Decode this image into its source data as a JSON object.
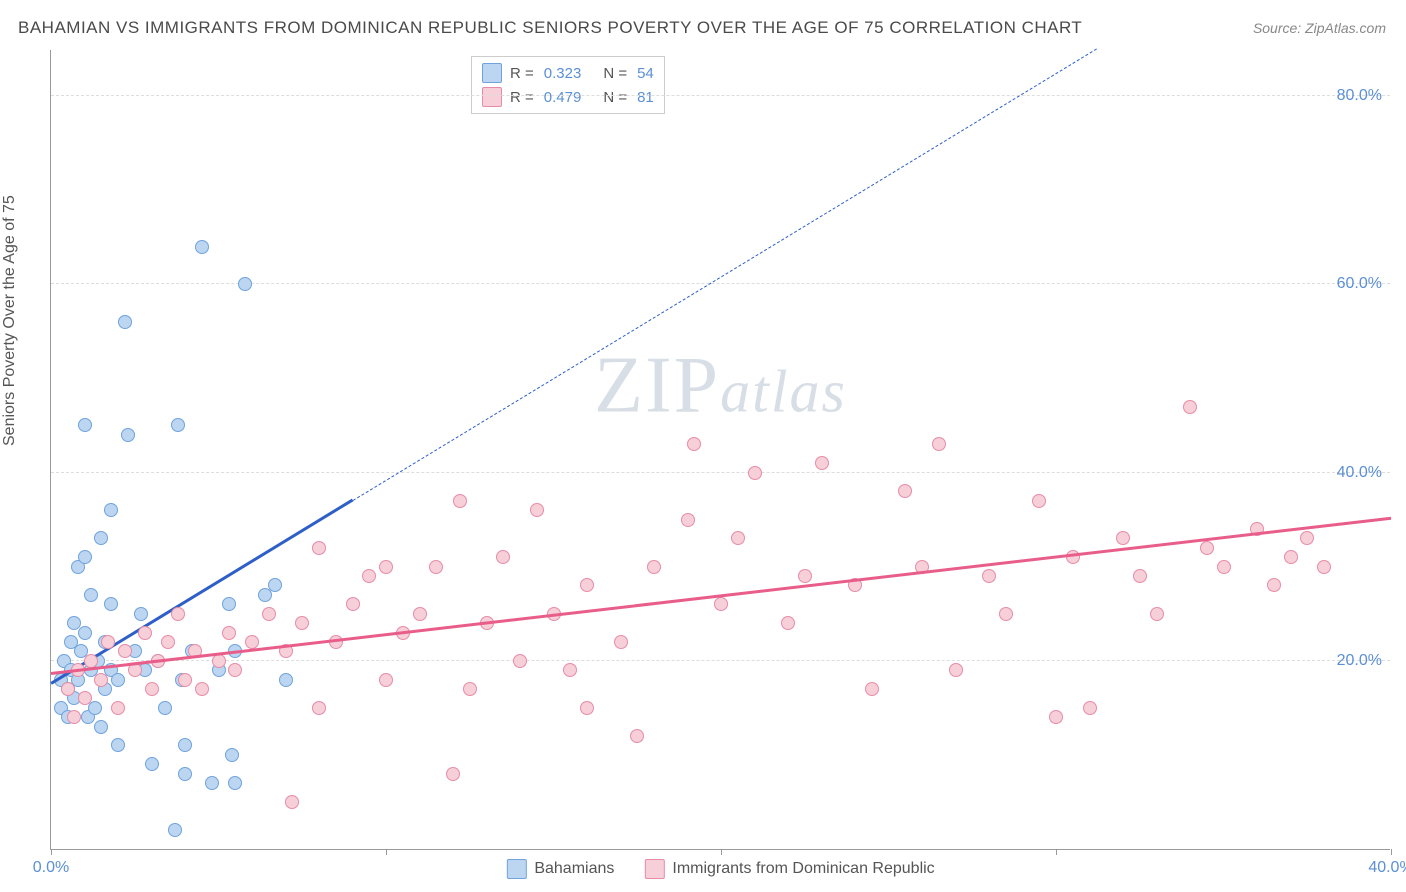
{
  "title": "BAHAMIAN VS IMMIGRANTS FROM DOMINICAN REPUBLIC SENIORS POVERTY OVER THE AGE OF 75 CORRELATION CHART",
  "source": "Source: ZipAtlas.com",
  "watermark_zip": "ZIP",
  "watermark_atlas": "atlas",
  "y_label": "Seniors Poverty Over the Age of 75",
  "chart": {
    "type": "scatter",
    "background_color": "#ffffff",
    "grid_color": "#dddddd",
    "axis_color": "#999999",
    "tick_label_color": "#5b8fd6",
    "tick_fontsize": 16,
    "xlim": [
      0,
      40
    ],
    "ylim": [
      0,
      85
    ],
    "x_ticks": [
      0,
      10,
      20,
      30,
      40
    ],
    "x_tick_labels": [
      "0.0%",
      "",
      "",
      "",
      "40.0%"
    ],
    "y_ticks": [
      20,
      40,
      60,
      80
    ],
    "y_tick_labels": [
      "20.0%",
      "40.0%",
      "60.0%",
      "80.0%"
    ],
    "marker_radius": 7,
    "marker_stroke_width": 1.5,
    "series": [
      {
        "name": "Bahamians",
        "fill_color": "#bcd5f0",
        "stroke_color": "#6fa3dd",
        "line_color": "#2e5fc9",
        "r_value": "0.323",
        "n_value": "54",
        "trend_start": [
          0,
          17.5
        ],
        "trend_solid_end": [
          9,
          37
        ],
        "trend_dashed_end": [
          40,
          104
        ],
        "points": [
          [
            0.3,
            18
          ],
          [
            0.3,
            15
          ],
          [
            0.4,
            20
          ],
          [
            0.5,
            17
          ],
          [
            0.6,
            22
          ],
          [
            0.6,
            19
          ],
          [
            0.7,
            16
          ],
          [
            0.7,
            24
          ],
          [
            0.8,
            30
          ],
          [
            0.8,
            18
          ],
          [
            0.9,
            21
          ],
          [
            1.0,
            45
          ],
          [
            1.0,
            23
          ],
          [
            1.1,
            14
          ],
          [
            1.2,
            19
          ],
          [
            1.2,
            27
          ],
          [
            1.3,
            15
          ],
          [
            1.4,
            20
          ],
          [
            1.5,
            33
          ],
          [
            1.6,
            17
          ],
          [
            1.6,
            22
          ],
          [
            1.8,
            36
          ],
          [
            1.8,
            19
          ],
          [
            1.8,
            26
          ],
          [
            2.0,
            11
          ],
          [
            2.0,
            18
          ],
          [
            2.2,
            56
          ],
          [
            2.3,
            44
          ],
          [
            2.5,
            21
          ],
          [
            2.7,
            25
          ],
          [
            2.8,
            19
          ],
          [
            3.0,
            9
          ],
          [
            3.2,
            20
          ],
          [
            3.4,
            15
          ],
          [
            3.7,
            2
          ],
          [
            3.8,
            45
          ],
          [
            3.9,
            18
          ],
          [
            4.0,
            11
          ],
          [
            4.2,
            21
          ],
          [
            4.5,
            64
          ],
          [
            4.8,
            7
          ],
          [
            5.0,
            19
          ],
          [
            5.3,
            26
          ],
          [
            5.4,
            10
          ],
          [
            5.5,
            21
          ],
          [
            5.8,
            60
          ],
          [
            6.4,
            27
          ],
          [
            6.7,
            28
          ],
          [
            7.0,
            18
          ],
          [
            5.5,
            7
          ],
          [
            4.0,
            8
          ],
          [
            1.5,
            13
          ],
          [
            1.0,
            31
          ],
          [
            0.5,
            14
          ]
        ]
      },
      {
        "name": "Immigrants from Dominican Republic",
        "fill_color": "#f6cfd9",
        "stroke_color": "#e88ba6",
        "line_color": "#e85d8a",
        "r_value": "0.479",
        "n_value": "81",
        "trend_start": [
          0,
          18.5
        ],
        "trend_solid_end": [
          40,
          35
        ],
        "trend_dashed_end": null,
        "points": [
          [
            0.5,
            17
          ],
          [
            0.7,
            14
          ],
          [
            0.8,
            19
          ],
          [
            1.0,
            16
          ],
          [
            1.2,
            20
          ],
          [
            1.5,
            18
          ],
          [
            1.7,
            22
          ],
          [
            2.0,
            15
          ],
          [
            2.2,
            21
          ],
          [
            2.5,
            19
          ],
          [
            2.8,
            23
          ],
          [
            3.0,
            17
          ],
          [
            3.2,
            20
          ],
          [
            3.5,
            22
          ],
          [
            3.8,
            25
          ],
          [
            4.0,
            18
          ],
          [
            4.3,
            21
          ],
          [
            4.5,
            17
          ],
          [
            5.0,
            20
          ],
          [
            5.3,
            23
          ],
          [
            5.5,
            19
          ],
          [
            6.0,
            22
          ],
          [
            6.5,
            25
          ],
          [
            7.0,
            21
          ],
          [
            7.2,
            5
          ],
          [
            7.5,
            24
          ],
          [
            8.0,
            15
          ],
          [
            8.5,
            22
          ],
          [
            9.0,
            26
          ],
          [
            9.5,
            29
          ],
          [
            10.0,
            18
          ],
          [
            10.5,
            23
          ],
          [
            11.0,
            25
          ],
          [
            11.5,
            30
          ],
          [
            12.0,
            8
          ],
          [
            12.2,
            37
          ],
          [
            12.5,
            17
          ],
          [
            13.0,
            24
          ],
          [
            13.5,
            31
          ],
          [
            14.0,
            20
          ],
          [
            14.5,
            36
          ],
          [
            15.0,
            25
          ],
          [
            15.5,
            19
          ],
          [
            16.0,
            28
          ],
          [
            17.0,
            22
          ],
          [
            17.5,
            12
          ],
          [
            18.0,
            30
          ],
          [
            19.0,
            35
          ],
          [
            19.2,
            43
          ],
          [
            20.0,
            26
          ],
          [
            20.5,
            33
          ],
          [
            21.0,
            40
          ],
          [
            22.0,
            24
          ],
          [
            22.5,
            29
          ],
          [
            23.0,
            41
          ],
          [
            24.0,
            28
          ],
          [
            24.5,
            17
          ],
          [
            25.5,
            38
          ],
          [
            26.0,
            30
          ],
          [
            26.5,
            43
          ],
          [
            27.0,
            19
          ],
          [
            28.0,
            29
          ],
          [
            28.5,
            25
          ],
          [
            29.5,
            37
          ],
          [
            30.0,
            14
          ],
          [
            30.5,
            31
          ],
          [
            31.0,
            15
          ],
          [
            32.0,
            33
          ],
          [
            32.5,
            29
          ],
          [
            33.0,
            25
          ],
          [
            34.0,
            47
          ],
          [
            34.5,
            32
          ],
          [
            35.0,
            30
          ],
          [
            36.0,
            34
          ],
          [
            36.5,
            28
          ],
          [
            37.0,
            31
          ],
          [
            37.5,
            33
          ],
          [
            38.0,
            30
          ],
          [
            16.0,
            15
          ],
          [
            8.0,
            32
          ],
          [
            10.0,
            30
          ]
        ]
      }
    ]
  },
  "top_legend": {
    "r_label": "R =",
    "n_label": "N ="
  },
  "bottom_legend": [
    {
      "label": "Bahamians",
      "fill": "#bcd5f0",
      "stroke": "#6fa3dd"
    },
    {
      "label": "Immigrants from Dominican Republic",
      "fill": "#f6cfd9",
      "stroke": "#e88ba6"
    }
  ]
}
